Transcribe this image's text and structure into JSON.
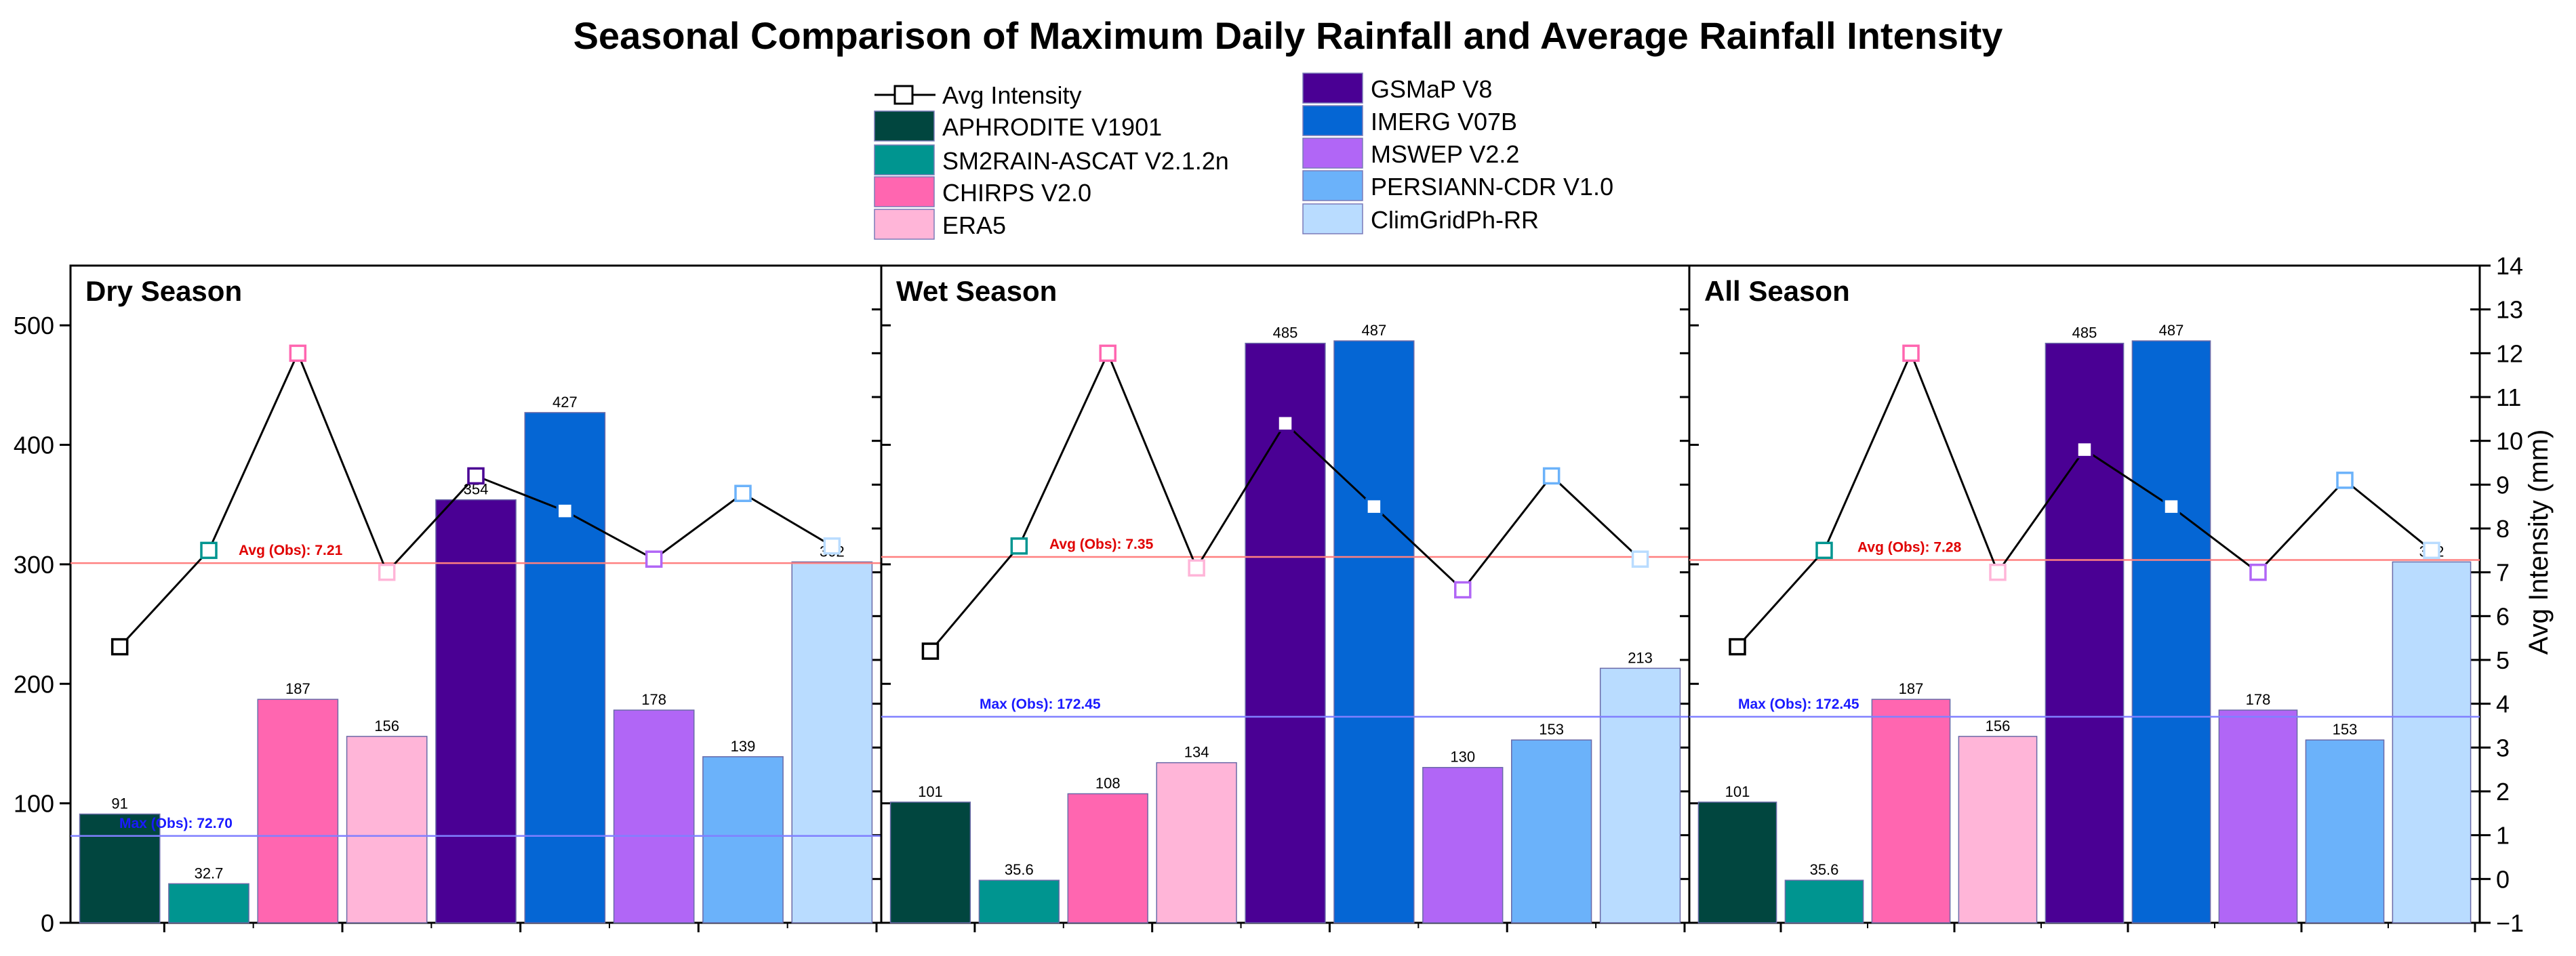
{
  "chart_data": {
    "type": "bar",
    "title": "Seasonal Comparison of Maximum Daily Rainfall and Average Rainfall Intensity",
    "categories": [
      "APHRODITE V1901",
      "SM2RAIN-ASCAT V2.1.2n",
      "CHIRPS V2.0",
      "ERA5",
      "GSMaP V8",
      "IMERG V07B",
      "MSWEP V2.2",
      "PERSIANN-CDR V1.0",
      "ClimGridPh-RR"
    ],
    "colors": [
      "#01463f",
      "#009590",
      "#ff66b0",
      "#ffb5d8",
      "#4a0094",
      "#0566d4",
      "#b166f6",
      "#6bb2fa",
      "#b9dcff"
    ],
    "line_legend": "Avg Intensity",
    "ylabel_right": "Avg Intensity (mm)",
    "ylim_left": [
      0,
      550
    ],
    "yticks_left": [
      "0",
      "100",
      "200",
      "300",
      "400",
      "500"
    ],
    "ylim_right": [
      -1,
      14
    ],
    "yticks_right": [
      "−1",
      "0",
      "1",
      "2",
      "3",
      "4",
      "5",
      "6",
      "7",
      "8",
      "9",
      "10",
      "11",
      "12",
      "13",
      "14"
    ],
    "panels": [
      {
        "name": "Dry Season",
        "max_rainfall": [
          91,
          32.7,
          187,
          156,
          354,
          427,
          178,
          139,
          302
        ],
        "bar_labels": [
          "91",
          "32.7",
          "187",
          "156",
          "354",
          "427",
          "178",
          "139",
          "302"
        ],
        "avg_intensity": [
          5.3,
          7.5,
          12.0,
          7.0,
          9.2,
          8.4,
          7.3,
          8.8,
          7.6
        ],
        "avg_obs": 7.21,
        "avg_obs_label": "Avg (Obs): 7.21",
        "max_obs": 72.7,
        "max_obs_label": "Max (Obs): 72.70"
      },
      {
        "name": "Wet Season",
        "max_rainfall": [
          101,
          35.6,
          108,
          134,
          485,
          487,
          130,
          153,
          213
        ],
        "bar_labels": [
          "101",
          "35.6",
          "108",
          "134",
          "485",
          "487",
          "130",
          "153",
          "213"
        ],
        "avg_intensity": [
          5.2,
          7.6,
          12.0,
          7.1,
          10.4,
          8.5,
          6.6,
          9.2,
          7.3
        ],
        "avg_obs": 7.35,
        "avg_obs_label": "Avg (Obs): 7.35",
        "max_obs": 172.45,
        "max_obs_label": "Max (Obs): 172.45"
      },
      {
        "name": "All Season",
        "max_rainfall": [
          101,
          35.6,
          187,
          156,
          485,
          487,
          178,
          153,
          302
        ],
        "bar_labels": [
          "101",
          "35.6",
          "187",
          "156",
          "485",
          "487",
          "178",
          "153",
          "302"
        ],
        "avg_intensity": [
          5.3,
          7.5,
          12.0,
          7.0,
          9.8,
          8.5,
          7.0,
          9.1,
          7.5
        ],
        "avg_obs": 7.28,
        "avg_obs_label": "Avg (Obs): 7.28",
        "max_obs": 172.45,
        "max_obs_label": "Max (Obs): 172.45"
      }
    ]
  }
}
